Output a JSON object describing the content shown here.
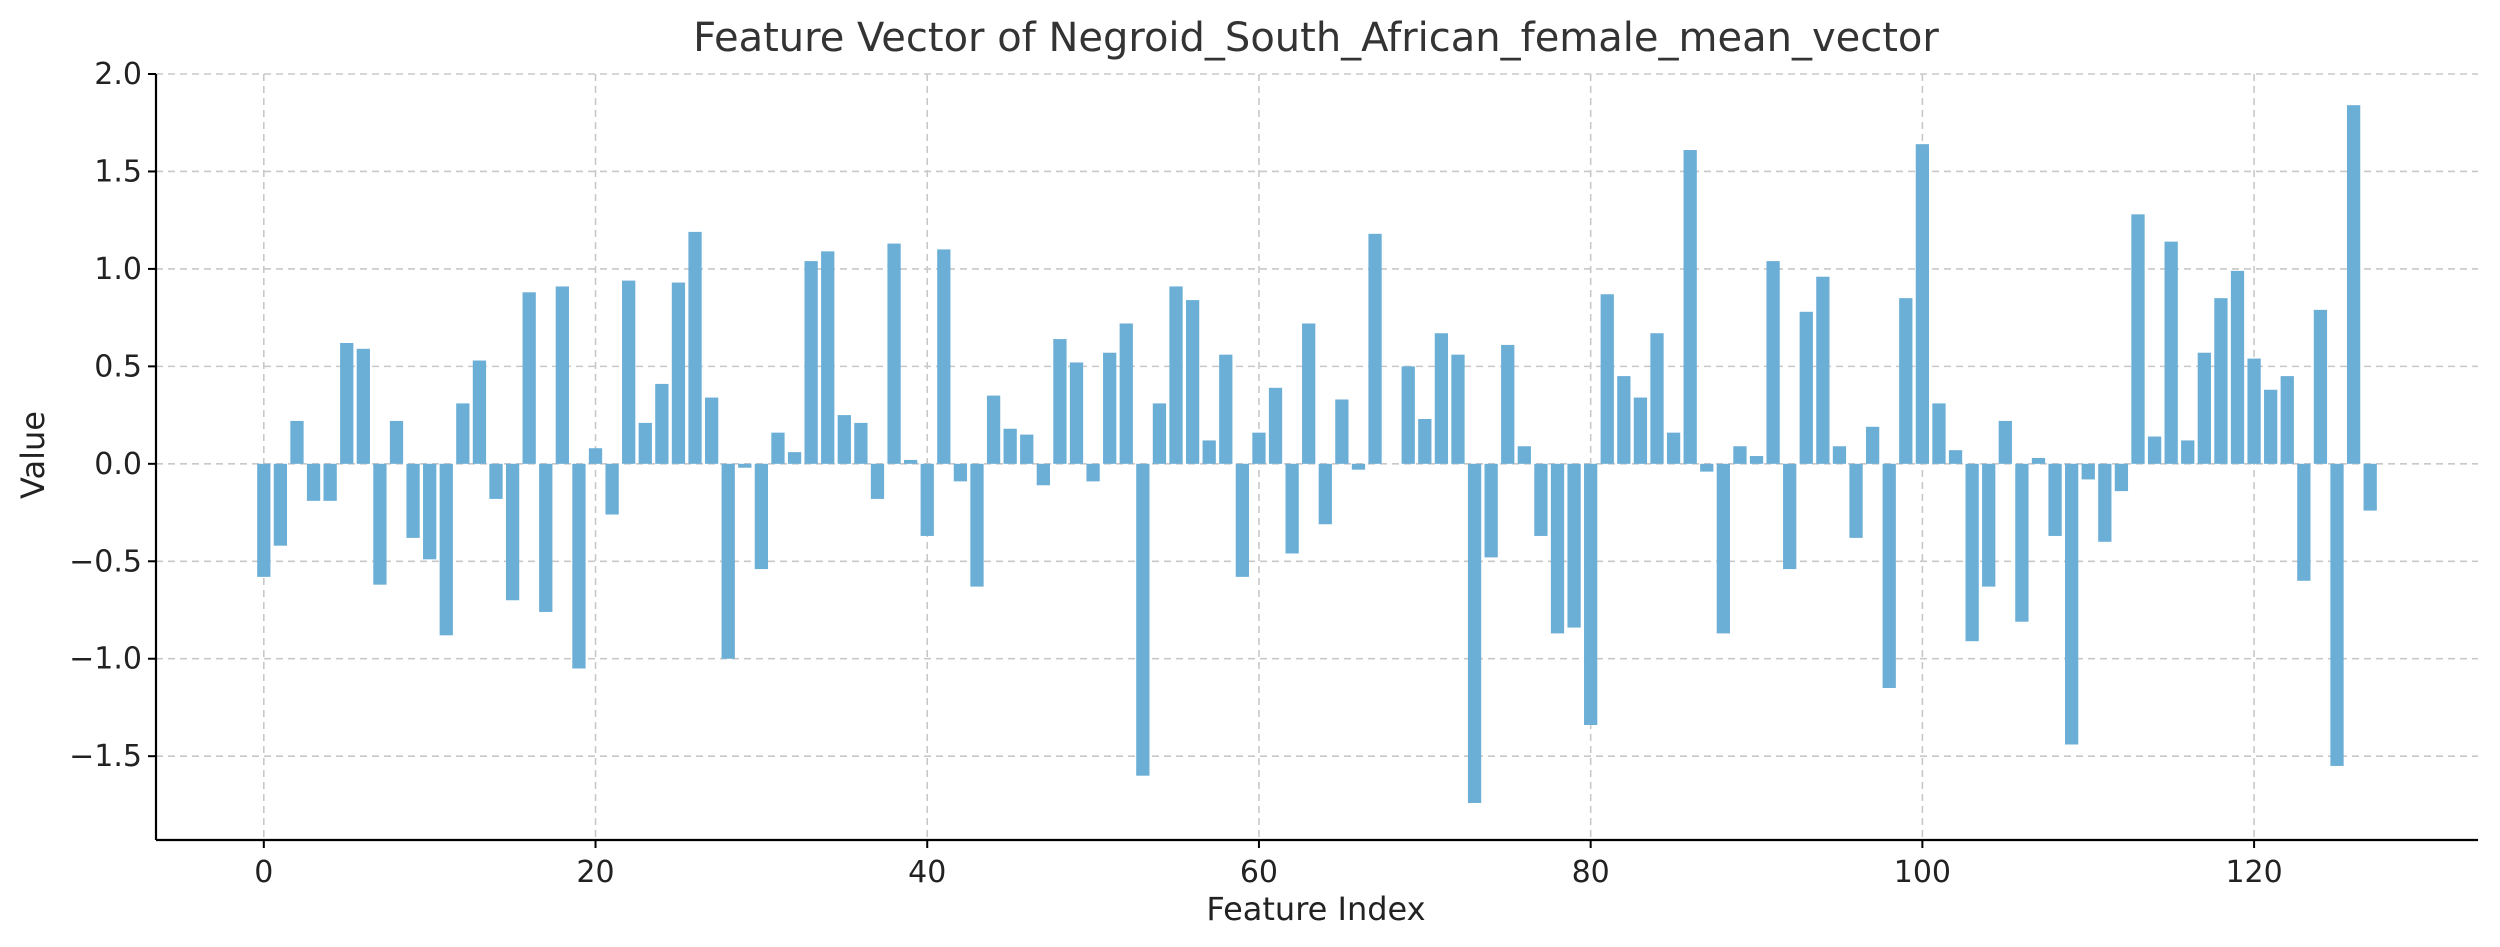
{
  "chart_data": {
    "type": "bar",
    "title": "Feature Vector of Negroid_South_African_female_mean_vector",
    "xlabel": "Feature Index",
    "ylabel": "Value",
    "xlim": [
      -6.5,
      133.5
    ],
    "ylim": [
      -1.93,
      2.0
    ],
    "xticks": [
      0,
      20,
      40,
      60,
      80,
      100,
      120
    ],
    "yticks": [
      -1.5,
      -1.0,
      -0.5,
      0.0,
      0.5,
      1.0,
      1.5,
      2.0
    ],
    "xtick_labels": [
      "0",
      "20",
      "40",
      "60",
      "80",
      "100",
      "120"
    ],
    "ytick_labels": [
      "−1.5",
      "−1.0",
      "−0.5",
      "0.0",
      "0.5",
      "1.0",
      "1.5",
      "2.0"
    ],
    "grid": true,
    "bar_color": "#6baed6",
    "values": [
      -0.58,
      -0.42,
      0.22,
      -0.19,
      -0.19,
      0.62,
      0.59,
      -0.62,
      0.22,
      -0.38,
      -0.49,
      -0.88,
      0.31,
      0.53,
      -0.18,
      -0.7,
      0.88,
      -0.76,
      0.91,
      -1.05,
      0.08,
      -0.26,
      0.94,
      0.21,
      0.41,
      0.93,
      1.19,
      0.34,
      -1.0,
      -0.02,
      -0.54,
      0.16,
      0.06,
      1.04,
      1.09,
      0.25,
      0.21,
      -0.18,
      1.13,
      0.02,
      -0.37,
      1.1,
      -0.09,
      -0.63,
      0.35,
      0.18,
      0.15,
      -0.11,
      0.64,
      0.52,
      -0.09,
      0.57,
      0.72,
      -1.6,
      0.31,
      0.91,
      0.84,
      0.12,
      0.56,
      -0.58,
      0.16,
      0.39,
      -0.46,
      0.72,
      -0.31,
      0.33,
      -0.03,
      1.18,
      0.0,
      0.5,
      0.23,
      0.67,
      0.56,
      -1.74,
      -0.48,
      0.61,
      0.09,
      -0.37,
      -0.87,
      -0.84,
      -1.34,
      0.87,
      0.45,
      0.34,
      0.67,
      0.16,
      1.61,
      -0.04,
      -0.87,
      0.09,
      0.04,
      1.04,
      -0.54,
      0.78,
      0.96,
      0.09,
      -0.38,
      0.19,
      -1.15,
      0.85,
      1.64,
      0.31,
      0.07,
      -0.91,
      -0.63,
      0.22,
      -0.81,
      0.03,
      -0.37,
      -1.44,
      -0.08,
      -0.4,
      -0.14,
      1.28,
      0.14,
      1.14,
      0.12,
      0.57,
      0.85,
      0.99,
      0.54,
      0.38,
      0.45,
      -0.6,
      0.79,
      -1.55,
      1.84,
      -0.24
    ]
  }
}
